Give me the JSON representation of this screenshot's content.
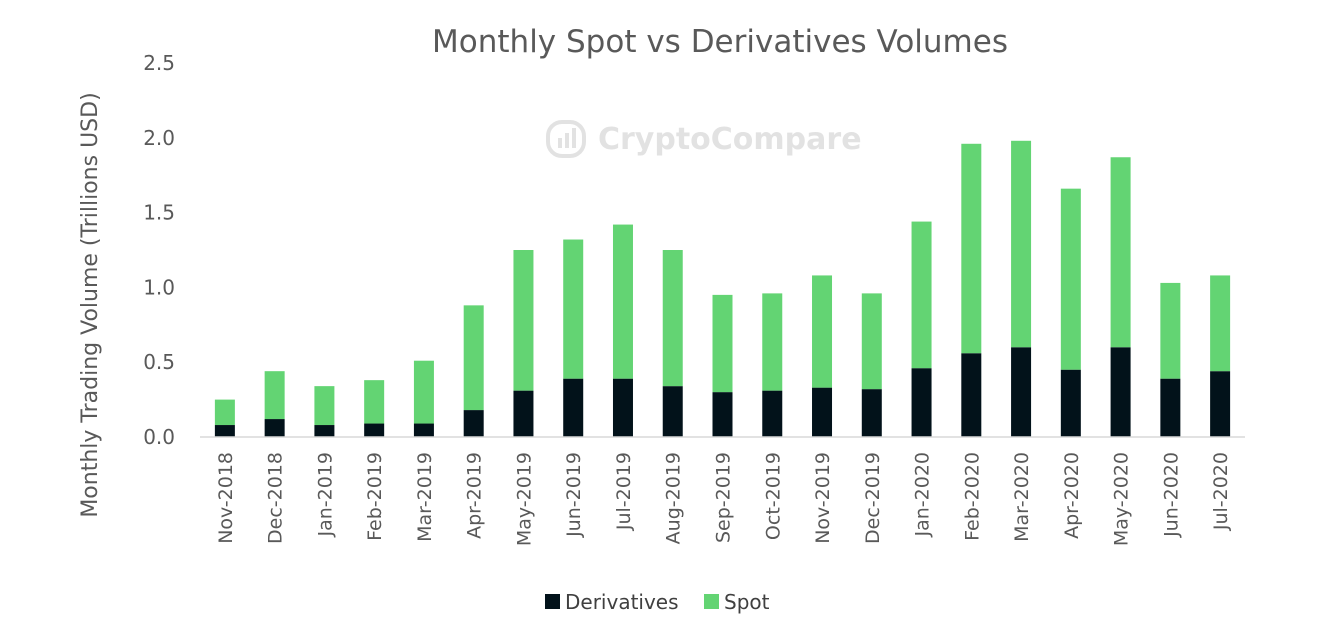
{
  "chart_data": {
    "type": "bar",
    "stacked": true,
    "title": "Monthly Spot vs Derivatives Volumes",
    "xlabel": "",
    "ylabel": "Monthly Trading Volume (Trillions USD)",
    "ylim": [
      0,
      2.5
    ],
    "yticks": [
      "0.0",
      "0.5",
      "1.0",
      "1.5",
      "2.0",
      "2.5"
    ],
    "grid": false,
    "legend_position": "bottom",
    "watermark": "CryptoCompare",
    "categories": [
      "Nov-2018",
      "Dec-2018",
      "Jan-2019",
      "Feb-2019",
      "Mar-2019",
      "Apr-2019",
      "May-2019",
      "Jun-2019",
      "Jul-2019",
      "Aug-2019",
      "Sep-2019",
      "Oct-2019",
      "Nov-2019",
      "Dec-2019",
      "Jan-2020",
      "Feb-2020",
      "Mar-2020",
      "Apr-2020",
      "May-2020",
      "Jun-2020",
      "Jul-2020"
    ],
    "series": [
      {
        "name": "Derivatives",
        "color": "#02121a",
        "values": [
          0.08,
          0.12,
          0.08,
          0.09,
          0.09,
          0.18,
          0.31,
          0.39,
          0.39,
          0.34,
          0.3,
          0.31,
          0.33,
          0.32,
          0.46,
          0.56,
          0.6,
          0.45,
          0.6,
          0.39,
          0.44
        ]
      },
      {
        "name": "Spot",
        "color": "#63d473",
        "values": [
          0.17,
          0.32,
          0.26,
          0.29,
          0.42,
          0.7,
          0.94,
          0.93,
          1.03,
          0.91,
          0.65,
          0.65,
          0.75,
          0.64,
          0.98,
          1.4,
          1.38,
          1.21,
          1.27,
          0.64,
          0.64
        ]
      }
    ]
  }
}
